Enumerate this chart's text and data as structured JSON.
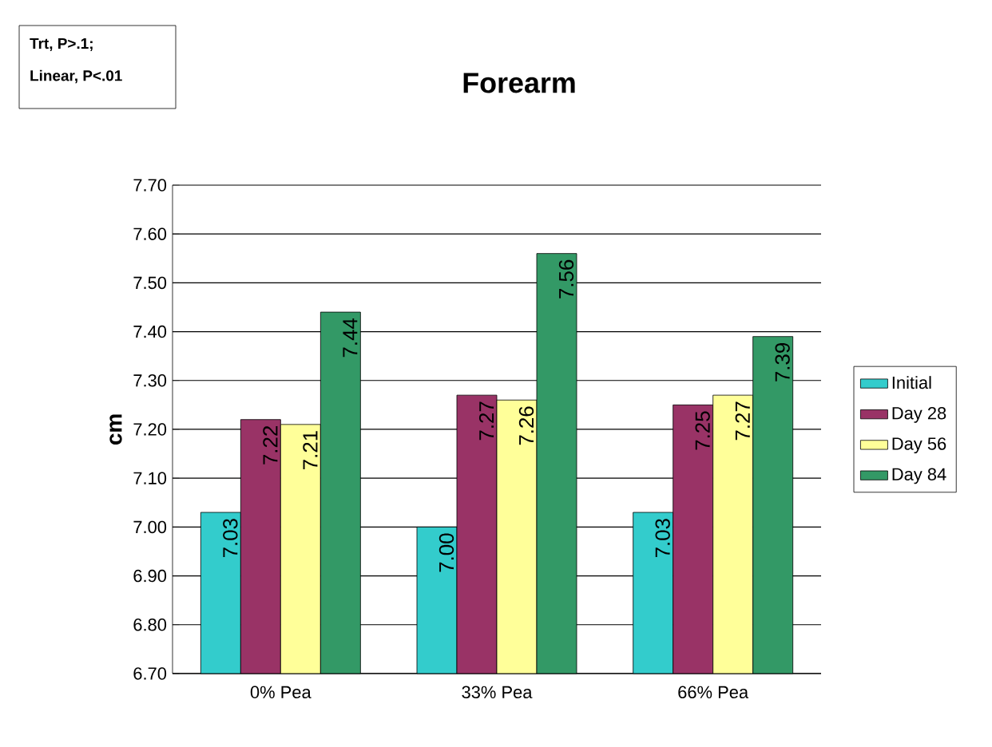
{
  "chart_data": {
    "type": "bar",
    "title": "Forearm",
    "ylabel": "cm",
    "annotations": [
      "Trt, P>.1;",
      "Linear, P<.01"
    ],
    "categories": [
      "0% Pea",
      "33% Pea",
      "66% Pea"
    ],
    "series": [
      {
        "name": "Initial",
        "color": "#33cccc",
        "values": [
          7.03,
          7.0,
          7.03
        ],
        "value_labels": [
          "7.03",
          "7.00",
          "7.03"
        ]
      },
      {
        "name": "Day 28",
        "color": "#993366",
        "values": [
          7.22,
          7.27,
          7.25
        ],
        "value_labels": [
          "7.22",
          "7.27",
          "7.25"
        ]
      },
      {
        "name": "Day 56",
        "color": "#ffff99",
        "values": [
          7.21,
          7.26,
          7.27
        ],
        "value_labels": [
          "7.21",
          "7.26",
          "7.27"
        ]
      },
      {
        "name": "Day 84",
        "color": "#339966",
        "values": [
          7.44,
          7.56,
          7.39
        ],
        "value_labels": [
          "7.44",
          "7.56",
          "7.39"
        ]
      }
    ],
    "ylim": [
      6.7,
      7.7
    ],
    "yticks": [
      {
        "value": 6.7,
        "label": "6.70"
      },
      {
        "value": 6.8,
        "label": "6.80"
      },
      {
        "value": 6.9,
        "label": "6.90"
      },
      {
        "value": 7.0,
        "label": "7.00"
      },
      {
        "value": 7.1,
        "label": "7.10"
      },
      {
        "value": 7.2,
        "label": "7.20"
      },
      {
        "value": 7.3,
        "label": "7.30"
      },
      {
        "value": 7.4,
        "label": "7.40"
      },
      {
        "value": 7.5,
        "label": "7.50"
      },
      {
        "value": 7.6,
        "label": "7.60"
      },
      {
        "value": 7.7,
        "label": "7.70"
      }
    ],
    "grid": "y",
    "legend": "right"
  }
}
